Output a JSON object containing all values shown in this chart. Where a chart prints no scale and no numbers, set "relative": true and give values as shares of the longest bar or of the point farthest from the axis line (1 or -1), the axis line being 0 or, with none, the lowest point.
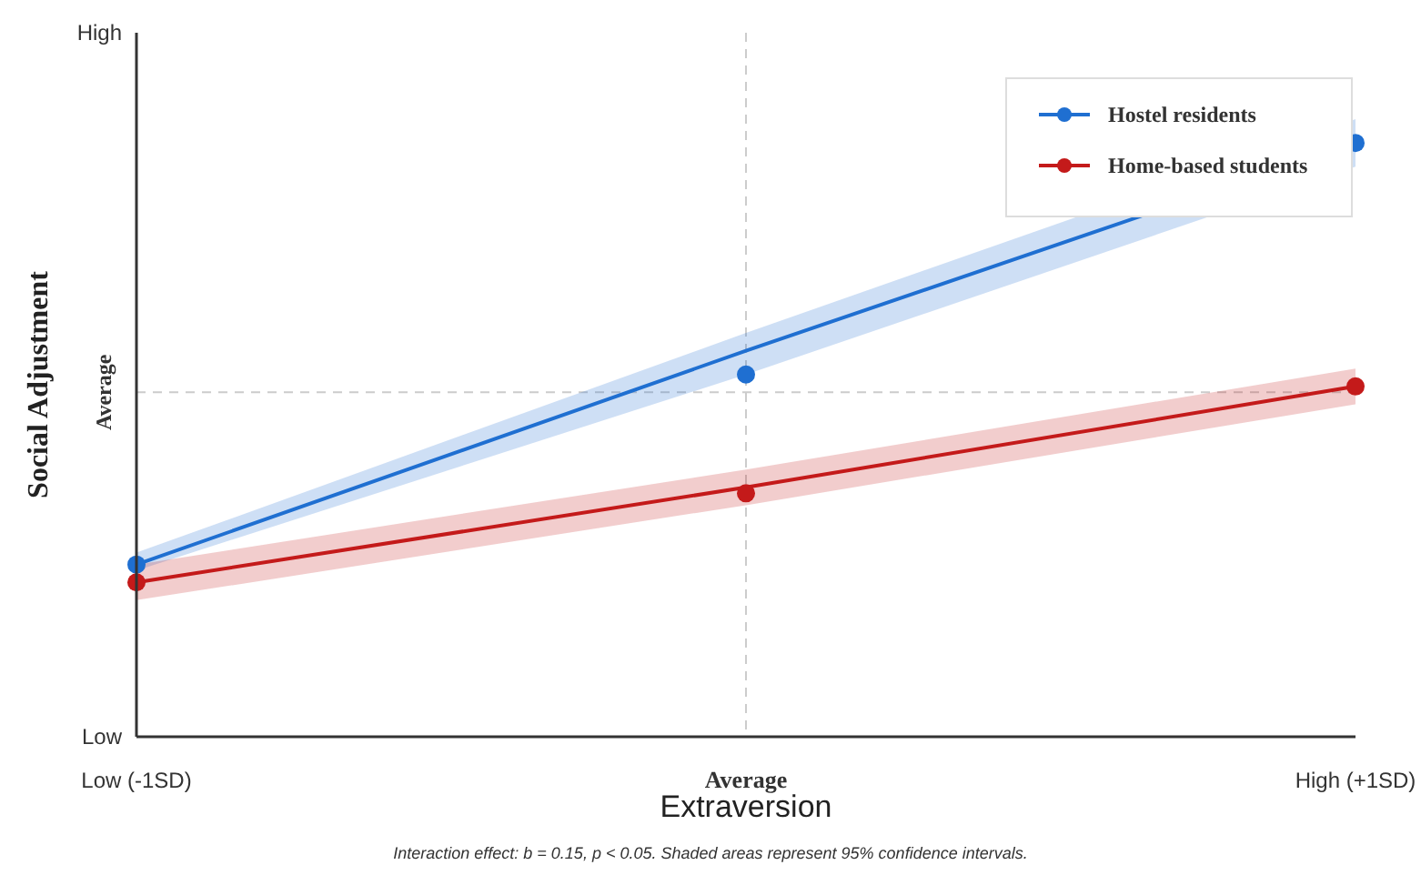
{
  "chart_data": {
    "type": "line",
    "xlabel": "Extraversion",
    "ylabel": "Social Adjustment",
    "relative": true,
    "categories": [
      "Low (-1SD)",
      "Average",
      "High (+1SD)"
    ],
    "series": [
      {
        "color": "#1f6fd1",
        "marker": "none",
        "values": [
          0.29,
          0.65,
          1
        ],
        "lower": [
          0.28,
          0.61,
          0.96
        ],
        "upper": [
          0.31,
          0.68,
          1.04
        ]
      },
      {
        "color": "#c41a1a",
        "marker": "none",
        "values": [
          0.26,
          0.42,
          0.59
        ],
        "lower": [
          0.23,
          0.39,
          0.56
        ],
        "upper": [
          0.29,
          0.45,
          0.62
        ]
      },
      {
        "type": "scatter",
        "name": "Hostel residents",
        "color": "#1f6fd1",
        "values": [
          0.29,
          0.61,
          1
        ]
      },
      {
        "type": "scatter",
        "name": "Home-based students",
        "color": "#c41a1a",
        "values": [
          0.26,
          0.41,
          0.59
        ]
      }
    ],
    "ref_lines": [
      {
        "axis": "x",
        "value": "Average",
        "color": "#cccccc",
        "line_style": "dashed"
      },
      {
        "axis": "y",
        "value": 0.58,
        "label": "Average",
        "color": "#cccccc",
        "line_style": "dashed"
      }
    ],
    "legend": "top right",
    "marker": "circle",
    "annotations": [
      "Low",
      "High",
      "Interaction effect: b = 0.15, p < 0.05. Shaded areas represent 95% confidence intervals."
    ]
  }
}
